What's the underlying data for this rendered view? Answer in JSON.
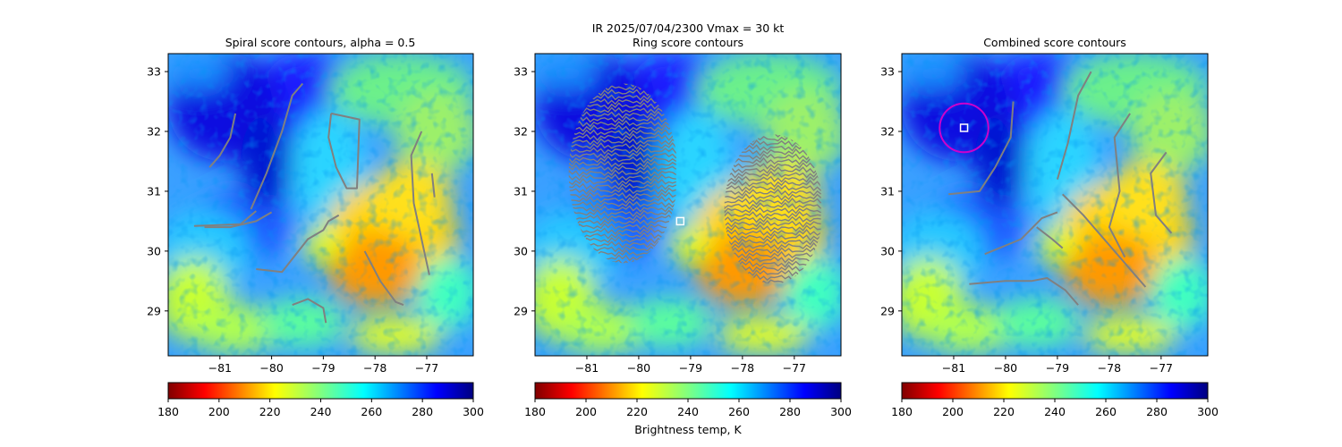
{
  "figure": {
    "suptitle_line1": "IR  2025/07/04/2300    Vmax = 30 kt",
    "colorbar_label": "Brightness temp, K"
  },
  "chart_data": [
    {
      "type": "heatmap",
      "title": "Spiral score contours, alpha =  0.5",
      "xlim": [
        -82,
        -76.1
      ],
      "ylim": [
        28.25,
        33.3
      ],
      "xticks": [
        -81,
        -80,
        -79,
        -78,
        -77
      ],
      "yticks": [
        29,
        30,
        31,
        32,
        33
      ],
      "colormap": "jet_r",
      "colorbar": {
        "range": [
          180,
          300
        ],
        "ticks": [
          180,
          200,
          220,
          240,
          260,
          280,
          300
        ]
      },
      "contour_color": "#808080",
      "contour_lines": [
        [
          [
            -81.2,
            31.4
          ],
          [
            -81.0,
            31.6
          ],
          [
            -80.8,
            31.9
          ],
          [
            -80.7,
            32.3
          ]
        ],
        [
          [
            -80.4,
            30.7
          ],
          [
            -80.1,
            31.3
          ],
          [
            -79.8,
            32.0
          ],
          [
            -79.6,
            32.6
          ],
          [
            -79.4,
            32.8
          ]
        ],
        [
          [
            -81.3,
            30.4
          ],
          [
            -80.8,
            30.4
          ],
          [
            -80.3,
            30.5
          ],
          [
            -80.0,
            30.65
          ]
        ],
        [
          [
            -81.5,
            30.42
          ],
          [
            -80.6,
            30.45
          ],
          [
            -80.3,
            30.67
          ]
        ],
        [
          [
            -80.3,
            29.7
          ],
          [
            -79.8,
            29.65
          ],
          [
            -79.3,
            30.2
          ],
          [
            -79.0,
            30.35
          ],
          [
            -78.9,
            30.5
          ],
          [
            -78.7,
            30.6
          ]
        ],
        [
          [
            -78.85,
            32.3
          ],
          [
            -78.9,
            31.9
          ],
          [
            -78.75,
            31.4
          ],
          [
            -78.55,
            31.05
          ],
          [
            -78.35,
            31.05
          ],
          [
            -78.3,
            32.2
          ],
          [
            -78.85,
            32.3
          ]
        ],
        [
          [
            -78.2,
            30.0
          ],
          [
            -77.9,
            29.5
          ],
          [
            -77.6,
            29.15
          ],
          [
            -77.45,
            29.1
          ]
        ],
        [
          [
            -77.1,
            32.0
          ],
          [
            -77.3,
            31.6
          ],
          [
            -77.25,
            30.8
          ],
          [
            -77.05,
            30.0
          ],
          [
            -76.95,
            29.6
          ]
        ],
        [
          [
            -79.6,
            29.1
          ],
          [
            -79.3,
            29.2
          ],
          [
            -79.0,
            29.05
          ],
          [
            -78.95,
            28.8
          ]
        ],
        [
          [
            -76.9,
            31.3
          ],
          [
            -76.85,
            30.9
          ]
        ]
      ],
      "rings": [],
      "center_markers": []
    },
    {
      "type": "heatmap",
      "title": "Ring score contours",
      "xlim": [
        -82,
        -76.1
      ],
      "ylim": [
        28.25,
        33.3
      ],
      "xticks": [
        -81,
        -80,
        -79,
        -78,
        -77
      ],
      "yticks": [
        29,
        30,
        31,
        32,
        33
      ],
      "colormap": "jet_r",
      "colorbar": {
        "range": [
          180,
          300
        ],
        "ticks": [
          180,
          200,
          220,
          240,
          260,
          280,
          300
        ]
      },
      "contour_color": "#808080",
      "contour_regions": [
        {
          "center": [
            -80.3,
            31.3
          ],
          "radii": [
            1.05,
            1.5
          ]
        },
        {
          "center": [
            -77.4,
            30.7
          ],
          "radii": [
            0.95,
            1.25
          ]
        }
      ],
      "contour_lines": [],
      "rings": [],
      "center_markers": [
        [
          -79.2,
          30.5
        ]
      ]
    },
    {
      "type": "heatmap",
      "title": "Combined score contours",
      "xlim": [
        -82,
        -76.1
      ],
      "ylim": [
        28.25,
        33.3
      ],
      "xticks": [
        -81,
        -80,
        -79,
        -78,
        -77
      ],
      "yticks": [
        29,
        30,
        31,
        32,
        33
      ],
      "colormap": "jet_r",
      "colorbar": {
        "range": [
          180,
          300
        ],
        "ticks": [
          180,
          200,
          220,
          240,
          260,
          280,
          300
        ]
      },
      "contour_color": "#808080",
      "contour_lines": [
        [
          [
            -81.1,
            30.95
          ],
          [
            -80.5,
            31.0
          ],
          [
            -80.2,
            31.4
          ],
          [
            -79.9,
            31.9
          ],
          [
            -79.85,
            32.5
          ]
        ],
        [
          [
            -79.0,
            31.2
          ],
          [
            -78.8,
            31.8
          ],
          [
            -78.6,
            32.6
          ],
          [
            -78.35,
            33.0
          ]
        ],
        [
          [
            -80.4,
            29.95
          ],
          [
            -79.7,
            30.2
          ],
          [
            -79.3,
            30.55
          ],
          [
            -79.0,
            30.65
          ]
        ],
        [
          [
            -78.9,
            30.95
          ],
          [
            -78.5,
            30.6
          ],
          [
            -78.3,
            30.4
          ],
          [
            -77.9,
            30.0
          ],
          [
            -77.5,
            29.6
          ],
          [
            -77.3,
            29.4
          ]
        ],
        [
          [
            -77.6,
            32.3
          ],
          [
            -77.9,
            31.9
          ],
          [
            -77.8,
            31.0
          ],
          [
            -78.0,
            30.4
          ],
          [
            -77.7,
            29.9
          ]
        ],
        [
          [
            -76.9,
            31.65
          ],
          [
            -77.2,
            31.3
          ],
          [
            -77.1,
            30.6
          ],
          [
            -76.8,
            30.3
          ]
        ],
        [
          [
            -80.7,
            29.45
          ],
          [
            -80.0,
            29.5
          ],
          [
            -79.5,
            29.5
          ],
          [
            -79.2,
            29.55
          ],
          [
            -78.85,
            29.35
          ],
          [
            -78.6,
            29.1
          ]
        ],
        [
          [
            -79.4,
            30.4
          ],
          [
            -79.1,
            30.2
          ],
          [
            -78.9,
            30.05
          ]
        ]
      ],
      "rings": [
        {
          "center": [
            -80.8,
            32.06
          ],
          "radius": 0.47,
          "color": "#cc00cc"
        }
      ],
      "center_markers": [
        [
          -80.8,
          32.06
        ]
      ]
    }
  ]
}
